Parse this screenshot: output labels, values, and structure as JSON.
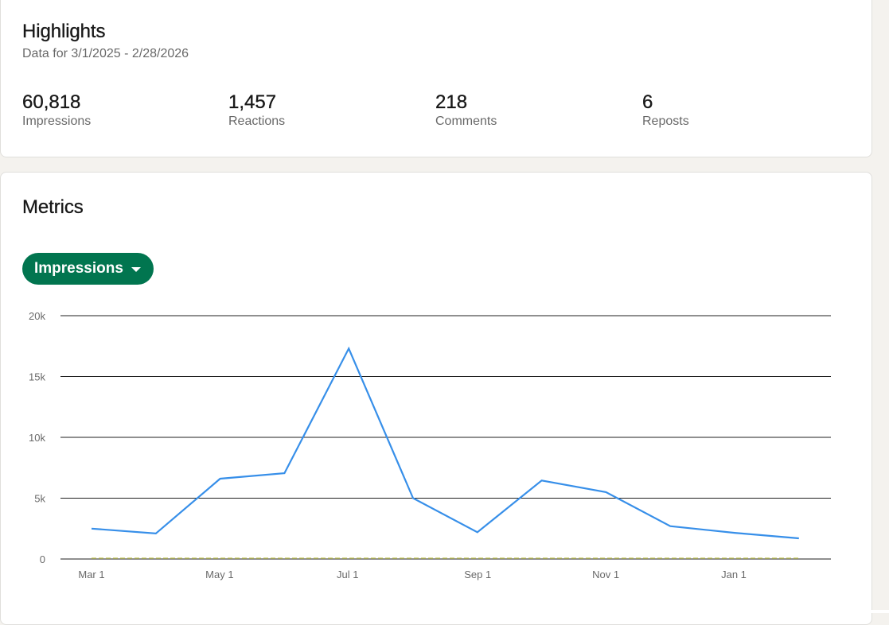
{
  "highlights": {
    "title": "Highlights",
    "subtitle": "Data for 3/1/2025 - 2/28/2026",
    "stats": [
      {
        "value": "60,818",
        "label": "Impressions"
      },
      {
        "value": "1,457",
        "label": "Reactions"
      },
      {
        "value": "218",
        "label": "Comments"
      },
      {
        "value": "6",
        "label": "Reposts"
      }
    ]
  },
  "metrics": {
    "title": "Metrics",
    "selector_label": "Impressions",
    "selector_icon": "caret-down-icon"
  },
  "colors": {
    "accent_green": "#01754f",
    "line_series": "#378fe9",
    "baseline_series": "#c5c96a",
    "gridline": "#1f1f1f"
  },
  "chart_data": {
    "type": "line",
    "ylim": [
      0,
      20000
    ],
    "y_ticks": [
      {
        "value": 0,
        "label": "0"
      },
      {
        "value": 5000,
        "label": "5k"
      },
      {
        "value": 10000,
        "label": "10k"
      },
      {
        "value": 15000,
        "label": "15k"
      },
      {
        "value": 20000,
        "label": "20k"
      }
    ],
    "x_ticks": [
      "Mar 1",
      "May 1",
      "Jul 1",
      "Sep 1",
      "Nov 1",
      "Jan 1"
    ],
    "x": [
      "2025-03-01",
      "2025-04-01",
      "2025-05-01",
      "2025-06-01",
      "2025-07-01",
      "2025-08-01",
      "2025-09-01",
      "2025-10-01",
      "2025-11-01",
      "2025-12-01",
      "2026-01-01",
      "2026-02-01"
    ],
    "series": [
      {
        "values": [
          2500,
          2100,
          6600,
          7050,
          17300,
          5000,
          2200,
          6450,
          5500,
          2700,
          2150,
          1700
        ]
      },
      {
        "values": [
          0,
          0,
          0,
          0,
          0,
          0,
          0,
          0,
          0,
          0,
          0,
          0
        ]
      }
    ],
    "grid": true
  }
}
